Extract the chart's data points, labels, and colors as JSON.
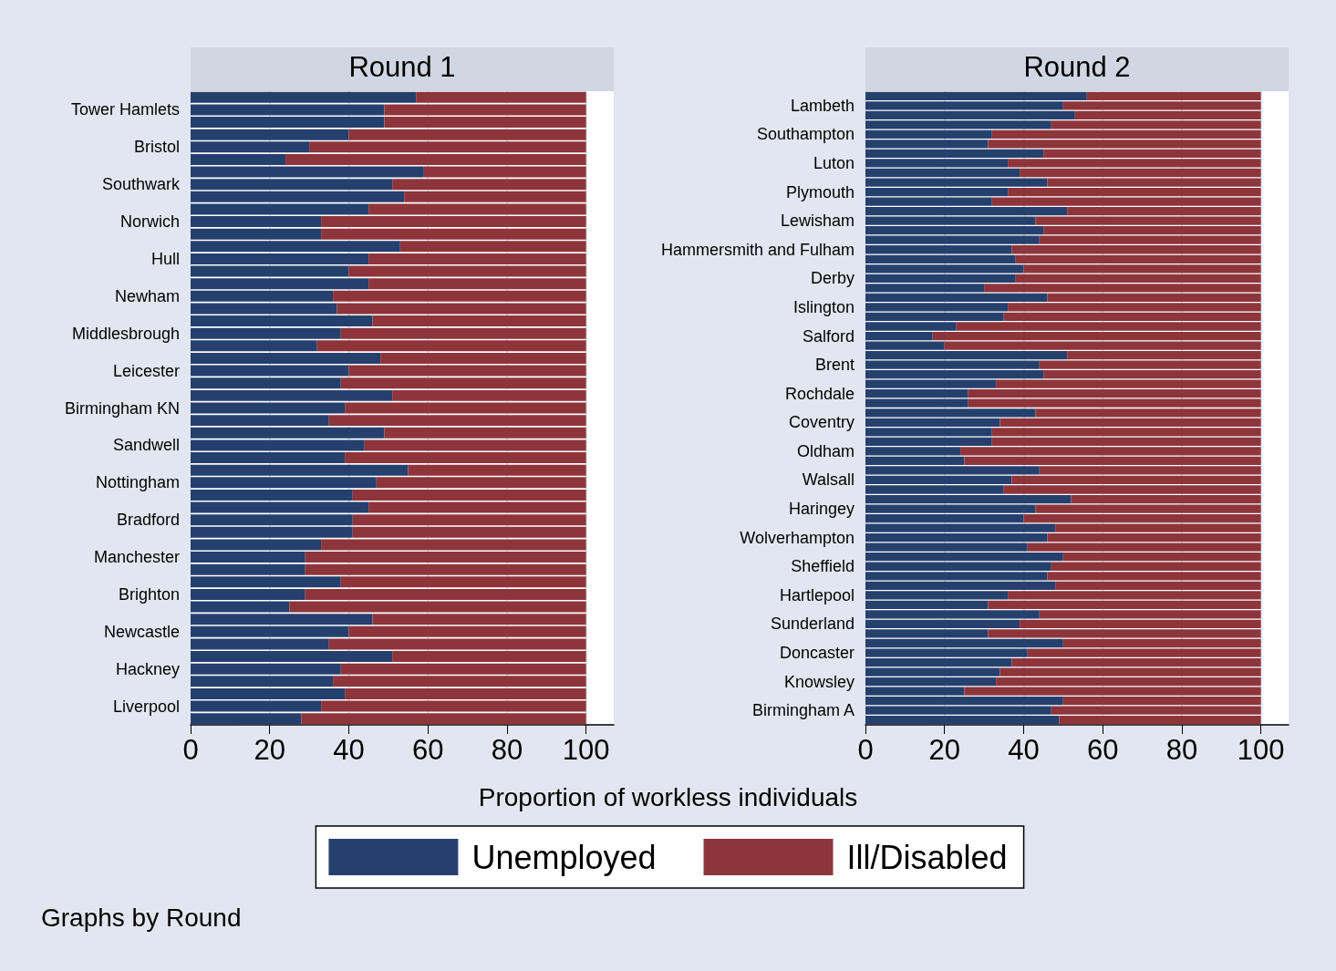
{
  "chart_data": [
    {
      "type": "bar",
      "orientation": "horizontal",
      "stacked": true,
      "title": "Round 1",
      "xlabel": "Proportion of workless individuals",
      "annotations": [
        "Graphs by Round"
      ],
      "legend": "bottom",
      "grid": "x",
      "xlim": [
        0,
        107
      ],
      "xticks": [
        0,
        20,
        40,
        60,
        80,
        100
      ],
      "categories": [
        null,
        "Tower Hamlets",
        null,
        null,
        "Bristol",
        null,
        null,
        "Southwark",
        null,
        null,
        "Norwich",
        null,
        null,
        "Hull",
        null,
        null,
        "Newham",
        null,
        null,
        "Middlesbrough",
        null,
        null,
        "Leicester",
        null,
        null,
        "Birmingham KN",
        null,
        null,
        "Sandwell",
        null,
        null,
        "Nottingham",
        null,
        null,
        "Bradford",
        null,
        null,
        "Manchester",
        null,
        null,
        "Brighton",
        null,
        null,
        "Newcastle",
        null,
        null,
        "Hackney",
        null,
        null,
        "Liverpool",
        null
      ],
      "series": [
        {
          "name": "Unemployed",
          "color": "#26406e",
          "values": [
            57,
            49,
            49,
            40,
            30,
            24,
            59,
            51,
            54,
            45,
            33,
            33,
            53,
            45,
            40,
            45,
            36,
            37,
            46,
            38,
            32,
            48,
            40,
            38,
            51,
            39,
            35,
            49,
            44,
            39,
            55,
            47,
            41,
            45,
            41,
            41,
            33,
            29,
            29,
            38,
            29,
            25,
            46,
            40,
            35,
            51,
            38,
            36,
            39,
            33,
            28
          ]
        },
        {
          "name": "Ill/Disabled",
          "color": "#8e353b",
          "values": [
            43,
            51,
            51,
            60,
            70,
            76,
            41,
            49,
            46,
            55,
            67,
            67,
            47,
            55,
            60,
            55,
            64,
            63,
            54,
            62,
            68,
            52,
            60,
            62,
            49,
            61,
            65,
            51,
            56,
            61,
            45,
            53,
            59,
            55,
            59,
            59,
            67,
            71,
            71,
            62,
            71,
            75,
            54,
            60,
            65,
            49,
            62,
            64,
            61,
            67,
            72
          ]
        }
      ]
    },
    {
      "type": "bar",
      "orientation": "horizontal",
      "stacked": true,
      "title": "Round 2",
      "legend": false,
      "grid": "x",
      "xlim": [
        0,
        107
      ],
      "xticks": [
        0,
        20,
        40,
        60,
        80,
        100
      ],
      "categories": [
        null,
        "Lambeth",
        null,
        null,
        "Southampton",
        null,
        null,
        "Luton",
        null,
        null,
        "Plymouth",
        null,
        null,
        "Lewisham",
        null,
        null,
        "Hammersmith and Fulham",
        null,
        null,
        "Derby",
        null,
        null,
        "Islington",
        null,
        null,
        "Salford",
        null,
        null,
        "Brent",
        null,
        null,
        "Rochdale",
        null,
        null,
        "Coventry",
        null,
        null,
        "Oldham",
        null,
        null,
        "Walsall",
        null,
        null,
        "Haringey",
        null,
        null,
        "Wolverhampton",
        null,
        null,
        "Sheffield",
        null,
        null,
        "Hartlepool",
        null,
        null,
        "Sunderland",
        null,
        null,
        "Doncaster",
        null,
        null,
        "Knowsley",
        null,
        null,
        "Birmingham A",
        null
      ],
      "series": [
        {
          "color": "#26406e",
          "values": [
            56,
            50,
            53,
            47,
            32,
            31,
            45,
            36,
            39,
            46,
            36,
            32,
            51,
            43,
            45,
            44,
            37,
            38,
            40,
            38,
            30,
            46,
            36,
            35,
            23,
            17,
            20,
            51,
            44,
            45,
            33,
            26,
            26,
            43,
            34,
            32,
            32,
            24,
            25,
            44,
            37,
            35,
            52,
            43,
            40,
            48,
            46,
            41,
            50,
            47,
            46,
            48,
            36,
            31,
            44,
            39,
            31,
            50,
            41,
            37,
            34,
            33,
            25,
            50,
            47,
            49
          ]
        },
        {
          "color": "#8e353b",
          "values": [
            44,
            50,
            47,
            53,
            68,
            69,
            55,
            64,
            61,
            54,
            64,
            68,
            49,
            57,
            55,
            56,
            63,
            62,
            60,
            62,
            70,
            54,
            64,
            65,
            77,
            83,
            80,
            49,
            56,
            55,
            67,
            74,
            74,
            57,
            66,
            68,
            68,
            76,
            75,
            56,
            63,
            65,
            48,
            57,
            60,
            52,
            54,
            59,
            50,
            53,
            54,
            52,
            64,
            69,
            56,
            61,
            69,
            50,
            59,
            63,
            66,
            67,
            75,
            50,
            53,
            51
          ]
        }
      ]
    }
  ]
}
